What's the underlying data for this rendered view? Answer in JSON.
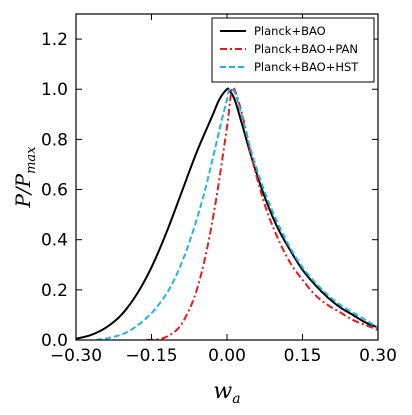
{
  "chart_data": {
    "type": "line",
    "xlabel": "w_a",
    "ylabel": "P/P_max",
    "xlim": [
      -0.3,
      0.3
    ],
    "ylim": [
      0.0,
      1.3
    ],
    "xticks": [
      -0.3,
      -0.15,
      0.0,
      0.15,
      0.3
    ],
    "xtick_labels": [
      "−0.30",
      "−0.15",
      "0.00",
      "0.15",
      "0.30"
    ],
    "yticks": [
      0.0,
      0.2,
      0.4,
      0.6,
      0.8,
      1.0,
      1.2
    ],
    "ytick_labels": [
      "0.0",
      "0.2",
      "0.4",
      "0.6",
      "0.8",
      "1.0",
      "1.2"
    ],
    "grid": false,
    "legend_position": "top-right",
    "series": [
      {
        "name": "Planck+BAO",
        "color": "#000000",
        "style": "solid",
        "x": [
          -0.3,
          -0.27,
          -0.24,
          -0.21,
          -0.18,
          -0.15,
          -0.12,
          -0.09,
          -0.06,
          -0.03,
          -0.015,
          0.0,
          0.005,
          0.015,
          0.03,
          0.05,
          0.075,
          0.1,
          0.125,
          0.15,
          0.175,
          0.2,
          0.225,
          0.25,
          0.275,
          0.3
        ],
        "y": [
          0.005,
          0.02,
          0.05,
          0.1,
          0.18,
          0.29,
          0.43,
          0.59,
          0.75,
          0.89,
          0.96,
          1.0,
          0.995,
          0.96,
          0.86,
          0.72,
          0.57,
          0.45,
          0.36,
          0.28,
          0.22,
          0.17,
          0.13,
          0.1,
          0.07,
          0.05
        ]
      },
      {
        "name": "Planck+BAO+PAN",
        "color": "#e31a1c",
        "style": "dashdot",
        "x": [
          -0.16,
          -0.13,
          -0.1,
          -0.08,
          -0.06,
          -0.04,
          -0.02,
          0.0,
          0.01,
          0.02,
          0.035,
          0.05,
          0.075,
          0.1,
          0.125,
          0.15,
          0.175,
          0.2,
          0.225,
          0.25,
          0.275,
          0.3
        ],
        "y": [
          0.0,
          0.005,
          0.04,
          0.1,
          0.2,
          0.36,
          0.58,
          0.85,
          1.0,
          0.97,
          0.86,
          0.72,
          0.54,
          0.41,
          0.31,
          0.24,
          0.18,
          0.14,
          0.11,
          0.08,
          0.06,
          0.04
        ]
      },
      {
        "name": "Planck+BAO+HST",
        "color": "#1fb4e6",
        "style": "dashed",
        "x": [
          -0.26,
          -0.23,
          -0.2,
          -0.17,
          -0.14,
          -0.11,
          -0.08,
          -0.05,
          -0.03,
          -0.01,
          0.0,
          0.005,
          0.015,
          0.03,
          0.05,
          0.075,
          0.1,
          0.125,
          0.15,
          0.175,
          0.2,
          0.225,
          0.25,
          0.275,
          0.3
        ],
        "y": [
          0.0,
          0.01,
          0.03,
          0.07,
          0.13,
          0.22,
          0.36,
          0.55,
          0.71,
          0.88,
          0.96,
          1.0,
          0.99,
          0.89,
          0.74,
          0.59,
          0.47,
          0.37,
          0.29,
          0.23,
          0.18,
          0.14,
          0.11,
          0.08,
          0.05
        ]
      }
    ]
  }
}
